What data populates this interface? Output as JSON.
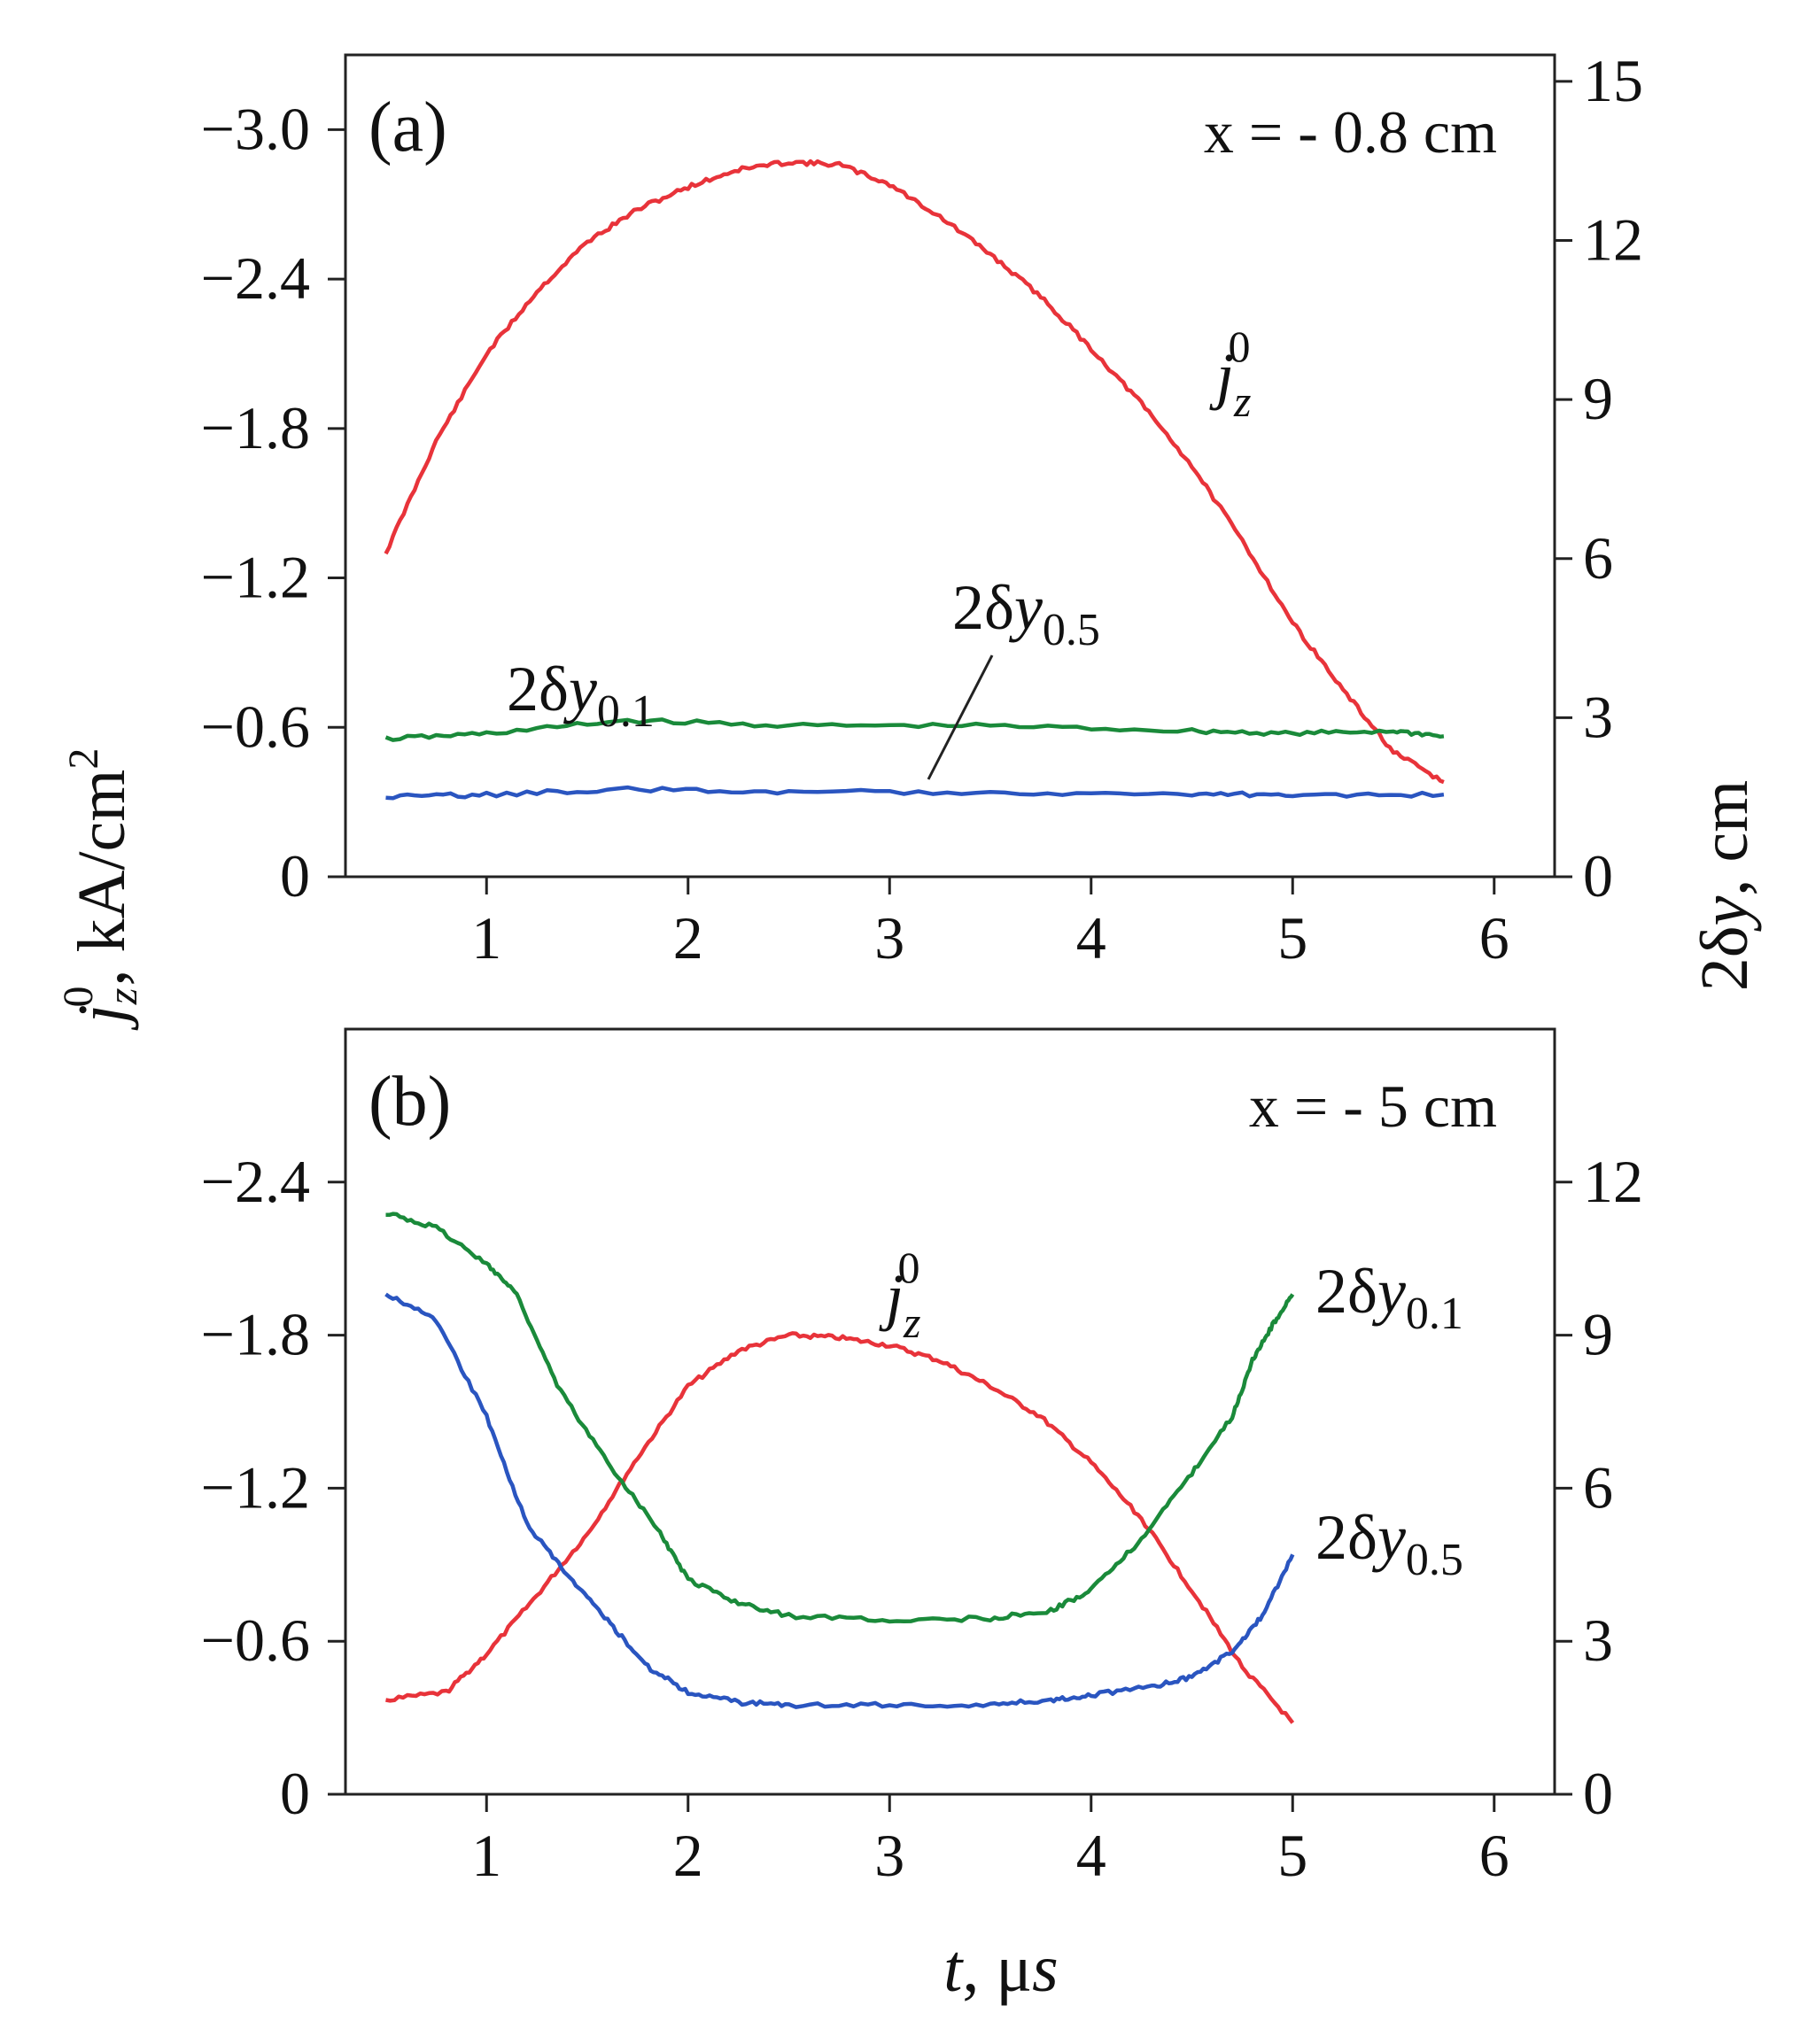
{
  "figure": {
    "left_ylabel": "j_z^0, kA/cm²",
    "right_ylabel": "2δy, cm",
    "xlabel": "t, μs"
  },
  "chart_data": [
    {
      "type": "line",
      "panel": "(a)",
      "title": "x = - 0.8 cm",
      "xlabel": "t, μs",
      "ylabel_left": "j_z^0, kA/cm²",
      "ylabel_right": "2δy, cm",
      "xlim": [
        0.3,
        6.3
      ],
      "xticks": [
        "1",
        "2",
        "3",
        "4",
        "5",
        "6"
      ],
      "ylim_left": [
        0,
        -3.3
      ],
      "yticks_left": [
        "0",
        "−0.6",
        "−1.2",
        "−1.8",
        "−2.4",
        "−3.0"
      ],
      "ylim_right": [
        0,
        15.5
      ],
      "yticks_right": [
        "0",
        "3",
        "6",
        "9",
        "12",
        "15"
      ],
      "series": [
        {
          "name": "j_z^0",
          "label": "j",
          "axis": "left",
          "color": "#e8333a",
          "x": [
            0.5,
            0.75,
            1.0,
            1.25,
            1.5,
            1.75,
            2.0,
            2.25,
            2.5,
            2.75,
            3.0,
            3.25,
            3.5,
            3.75,
            4.0,
            4.25,
            4.5,
            4.75,
            5.0,
            5.25,
            5.5,
            5.75
          ],
          "y": [
            -1.3,
            -1.75,
            -2.1,
            -2.35,
            -2.55,
            -2.68,
            -2.77,
            -2.84,
            -2.87,
            -2.86,
            -2.78,
            -2.65,
            -2.5,
            -2.33,
            -2.12,
            -1.9,
            -1.65,
            -1.35,
            -1.02,
            -0.75,
            -0.5,
            -0.38
          ]
        },
        {
          "name": "2δy_0.1",
          "label": "2δy",
          "axis": "right",
          "color": "#1a8a3a",
          "x": [
            0.5,
            1.0,
            1.7,
            2.5,
            3.5,
            4.5,
            5.0,
            5.5,
            5.75
          ],
          "y": [
            2.6,
            2.7,
            2.95,
            2.85,
            2.85,
            2.75,
            2.7,
            2.75,
            2.65
          ]
        },
        {
          "name": "2δy_0.5",
          "label": "2δy",
          "axis": "right",
          "color": "#2a55c0",
          "x": [
            0.5,
            1.0,
            1.7,
            2.5,
            3.5,
            4.5,
            5.0,
            5.75
          ],
          "y": [
            1.5,
            1.55,
            1.65,
            1.6,
            1.6,
            1.55,
            1.55,
            1.55
          ]
        }
      ],
      "annotations": {
        "panel_label": "(a)",
        "x_label": "x = - 0.8 cm",
        "j_base": "j",
        "j_sub": "z",
        "j_sup": "0",
        "dy01_base": "2δy",
        "dy01_sub": "0.1",
        "dy05_base": "2δy",
        "dy05_sub": "0.5"
      }
    },
    {
      "type": "line",
      "panel": "(b)",
      "title": "x = - 5 cm",
      "xlabel": "t, μs",
      "ylabel_left": "j_z^0, kA/cm²",
      "ylabel_right": "2δy, cm",
      "xlim": [
        0.3,
        6.3
      ],
      "xticks": [
        "1",
        "2",
        "3",
        "4",
        "5",
        "6"
      ],
      "ylim_left": [
        0,
        -3.0
      ],
      "yticks_left": [
        "0",
        "−0.6",
        "−1.2",
        "−1.8",
        "−2.4"
      ],
      "ylim_right": [
        0,
        15.0
      ],
      "yticks_right": [
        "0",
        "3",
        "6",
        "9",
        "12"
      ],
      "series": [
        {
          "name": "j_z^0",
          "label": "j",
          "axis": "left",
          "color": "#e8333a",
          "x": [
            0.5,
            0.8,
            1.0,
            1.25,
            1.5,
            1.75,
            2.0,
            2.25,
            2.5,
            2.75,
            3.0,
            3.25,
            3.5,
            3.75,
            4.0,
            4.25,
            4.5,
            4.75,
            5.0
          ],
          "y": [
            -0.37,
            -0.4,
            -0.55,
            -0.78,
            -1.02,
            -1.32,
            -1.6,
            -1.74,
            -1.8,
            -1.79,
            -1.76,
            -1.7,
            -1.6,
            -1.48,
            -1.3,
            -1.08,
            -0.8,
            -0.5,
            -0.28
          ]
        },
        {
          "name": "2δy_0.1",
          "label": "2δy",
          "axis": "right",
          "color": "#1a8a3a",
          "x": [
            0.5,
            0.75,
            1.0,
            1.15,
            1.35,
            1.6,
            1.85,
            2.0,
            2.25,
            2.5,
            3.0,
            3.5,
            3.8,
            4.0,
            4.25,
            4.5,
            4.7,
            4.8,
            4.9,
            5.0
          ],
          "y": [
            11.4,
            11.1,
            10.4,
            9.8,
            8.0,
            6.5,
            5.2,
            4.2,
            3.75,
            3.5,
            3.4,
            3.45,
            3.6,
            4.0,
            5.0,
            6.3,
            7.4,
            8.5,
            9.2,
            9.8
          ]
        },
        {
          "name": "2δy_0.5",
          "label": "2δy",
          "axis": "right",
          "color": "#2a55c0",
          "x": [
            0.5,
            0.75,
            1.0,
            1.2,
            1.4,
            1.6,
            1.8,
            2.0,
            2.25,
            2.5,
            3.0,
            3.5,
            3.8,
            4.0,
            4.3,
            4.5,
            4.7,
            4.85,
            5.0
          ],
          "y": [
            9.8,
            9.3,
            7.4,
            5.3,
            4.3,
            3.4,
            2.5,
            2.0,
            1.8,
            1.75,
            1.75,
            1.75,
            1.85,
            1.95,
            2.1,
            2.3,
            2.8,
            3.5,
            4.7
          ]
        }
      ],
      "annotations": {
        "panel_label": "(b)",
        "x_label": "x = - 5 cm",
        "j_base": "j",
        "j_sub": "z",
        "j_sup": "0",
        "dy01_base": "2δy",
        "dy01_sub": "0.1",
        "dy05_base": "2δy",
        "dy05_sub": "0.5"
      }
    }
  ]
}
